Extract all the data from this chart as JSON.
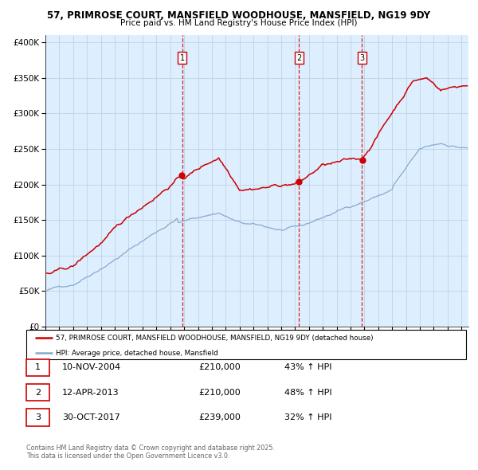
{
  "title_line1": "57, PRIMROSE COURT, MANSFIELD WOODHOUSE, MANSFIELD, NG19 9DY",
  "title_line2": "Price paid vs. HM Land Registry's House Price Index (HPI)",
  "legend_line1": "57, PRIMROSE COURT, MANSFIELD WOODHOUSE, MANSFIELD, NG19 9DY (detached house)",
  "legend_line2": "HPI: Average price, detached house, Mansfield",
  "transactions": [
    {
      "num": 1,
      "date": "10-NOV-2004",
      "price": 210000,
      "pct": "43%",
      "dir": "↑"
    },
    {
      "num": 2,
      "date": "12-APR-2013",
      "price": 210000,
      "pct": "48%",
      "dir": "↑"
    },
    {
      "num": 3,
      "date": "30-OCT-2017",
      "price": 239000,
      "pct": "32%",
      "dir": "↑"
    }
  ],
  "vline_dates": [
    2004.87,
    2013.28,
    2017.83
  ],
  "property_color": "#cc0000",
  "hpi_color": "#88aacc",
  "background_color": "#ddeeff",
  "grid_color": "#bbccdd",
  "ylim": [
    0,
    410000
  ],
  "yticks": [
    0,
    50000,
    100000,
    150000,
    200000,
    250000,
    300000,
    350000,
    400000
  ],
  "xlim_start": 1995,
  "xlim_end": 2025.5,
  "footer": "Contains HM Land Registry data © Crown copyright and database right 2025.\nThis data is licensed under the Open Government Licence v3.0."
}
